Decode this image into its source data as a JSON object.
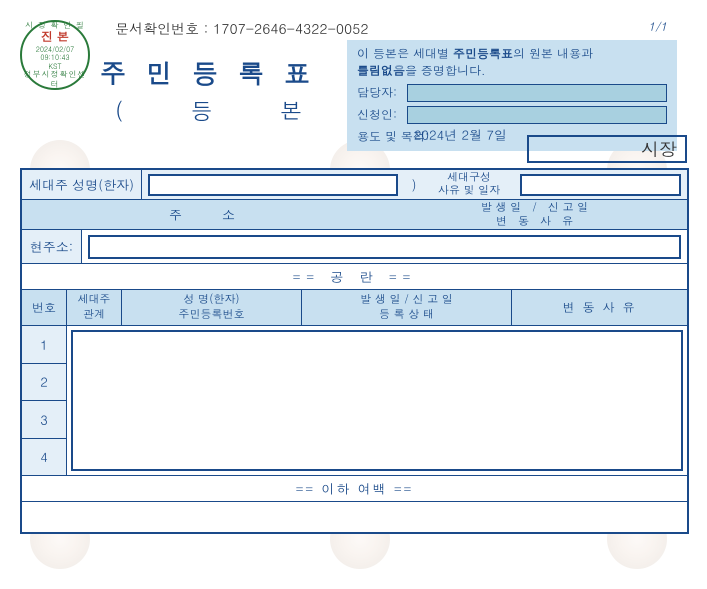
{
  "doc": {
    "confirm_label": "문서확인번호 :",
    "confirm_number": "1707-2646-4322-0052",
    "page": "1/1",
    "title": "주민등록표",
    "subtitle": "( 등   본 )",
    "date": "2024년 2월 7일",
    "mayor": "시장"
  },
  "stamp": {
    "top": "시 정 확 인 필",
    "mid": "진 본",
    "date1": "2024/02/07",
    "date2": "09:10:43",
    "tz": "KST",
    "bottom": "정부시정확인센터"
  },
  "cert": {
    "line1a": "이 등본은 세대별 ",
    "line1b": "주민등록표",
    "line1c": "의 원본 내용과",
    "line2a": "틀림없음",
    "line2b": "을 증명합니다.",
    "officer_label": "담당자:",
    "applicant_label": "신청인:",
    "purpose_label": "용도 및 목적:"
  },
  "hh": {
    "head_label": "세대주 성명(한자)",
    "paren": ")",
    "reason_label": "세대구성\n사유 및 일자"
  },
  "addr_hdr": {
    "address": "주소",
    "right": "발 생 일   /   신 고 일\n변   동   사   유"
  },
  "curr": {
    "label": "현주소:"
  },
  "blank": "==   공   란   ==",
  "member_hdr": {
    "num": "번호",
    "rel1": "세대주",
    "rel2": "관계",
    "name1": "성  명(한자)",
    "name2": "주민등록번호",
    "date1": "발 생 일   /   신 고 일",
    "date2": "등 록 상 태",
    "reason": "변 동 사 유"
  },
  "nums": [
    "1",
    "2",
    "3",
    "4"
  ],
  "below": "== 이하 여백 ==",
  "colors": {
    "primary": "#1a4a8a",
    "header_bg": "#c8e0f0",
    "row_bg": "#e4eff8",
    "stamp": "#2a7a3a",
    "stamp_accent": "#c0392b"
  }
}
